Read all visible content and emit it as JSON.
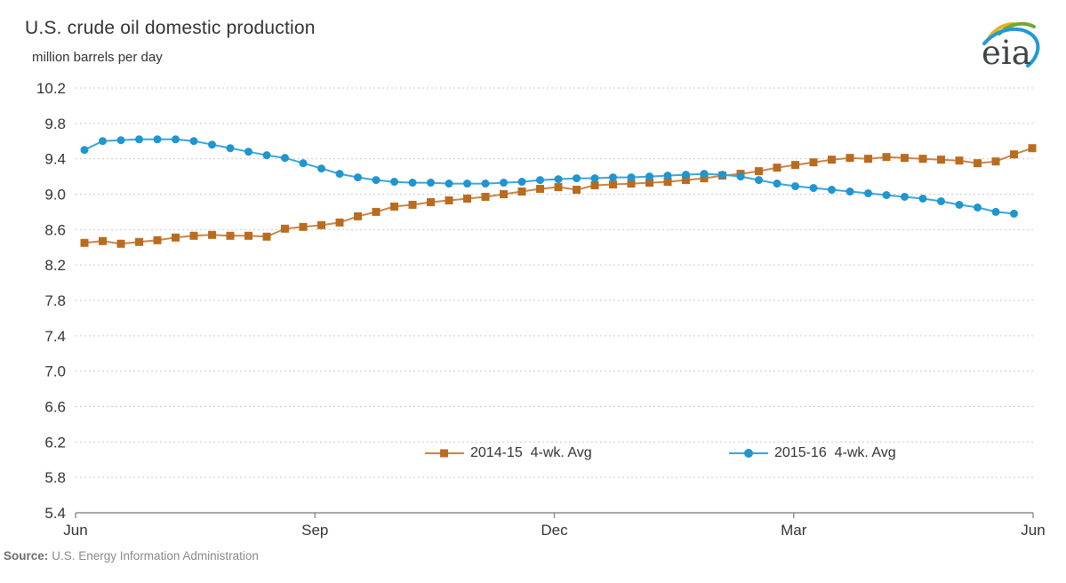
{
  "header": {
    "logo_text": "eia"
  },
  "source": {
    "label": "Source:",
    "text": "U.S. Energy Information Administration"
  },
  "chart_data": {
    "type": "line",
    "title": "U.S. crude oil domestic production",
    "ylabel": "million barrels per day",
    "x_tick_labels": [
      "Jun",
      "Sep",
      "Dec",
      "Mar",
      "Jun"
    ],
    "y_tick_labels": [
      "10.2",
      "9.8",
      "9.4",
      "9.0",
      "8.6",
      "8.2",
      "7.8",
      "7.4",
      "7.0",
      "6.6",
      "6.2",
      "5.8",
      "5.4"
    ],
    "ylim": [
      5.4,
      10.2
    ],
    "grid": "horizontal-dashed",
    "legend_position": "inside-bottom",
    "axis_color": "#8c8c8c",
    "grid_color": "#c9c9c9",
    "series": [
      {
        "name": "2014-15  4-wk. Avg",
        "marker": "square",
        "color_marker": "#b96c20",
        "color_line": "#c8854a",
        "values": [
          8.45,
          8.47,
          8.44,
          8.46,
          8.48,
          8.51,
          8.53,
          8.54,
          8.53,
          8.53,
          8.52,
          8.61,
          8.63,
          8.65,
          8.68,
          8.75,
          8.8,
          8.86,
          8.88,
          8.91,
          8.93,
          8.95,
          8.97,
          9.0,
          9.03,
          9.06,
          9.08,
          9.05,
          9.1,
          9.11,
          9.12,
          9.13,
          9.14,
          9.16,
          9.18,
          9.21,
          9.23,
          9.26,
          9.3,
          9.33,
          9.36,
          9.39,
          9.41,
          9.4,
          9.42,
          9.41,
          9.4,
          9.39,
          9.38,
          9.35,
          9.37,
          9.45,
          9.52
        ]
      },
      {
        "name": "2015-16  4-wk. Avg",
        "marker": "circle",
        "color_marker": "#2095ce",
        "color_line": "#3aa5d9",
        "values": [
          9.5,
          9.6,
          9.61,
          9.62,
          9.62,
          9.62,
          9.6,
          9.56,
          9.52,
          9.48,
          9.44,
          9.41,
          9.35,
          9.29,
          9.23,
          9.19,
          9.16,
          9.14,
          9.13,
          9.13,
          9.12,
          9.12,
          9.12,
          9.13,
          9.14,
          9.16,
          9.17,
          9.18,
          9.18,
          9.19,
          9.19,
          9.2,
          9.21,
          9.22,
          9.23,
          9.22,
          9.2,
          9.16,
          9.12,
          9.09,
          9.07,
          9.05,
          9.03,
          9.01,
          8.99,
          8.97,
          8.95,
          8.92,
          8.88,
          8.85,
          8.8,
          8.78
        ]
      }
    ]
  }
}
